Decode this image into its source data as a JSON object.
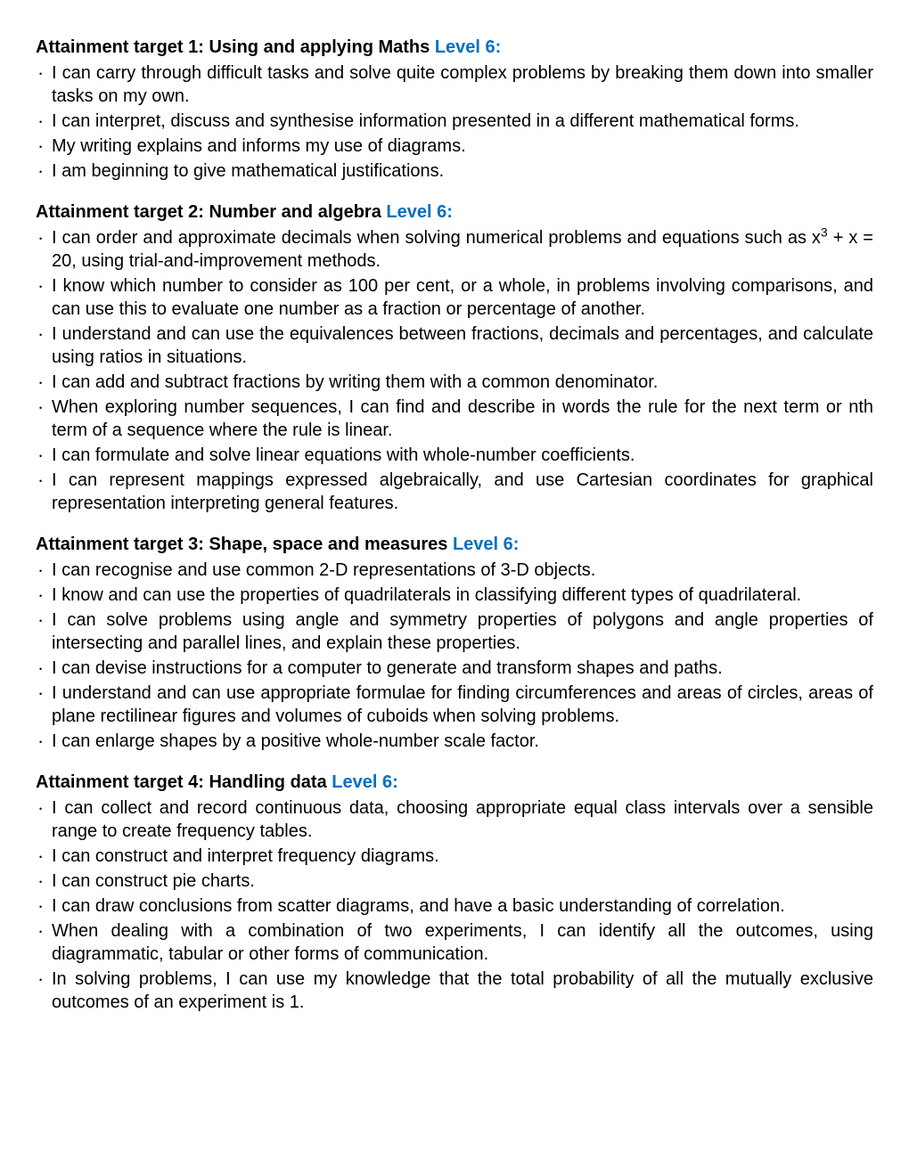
{
  "sections": [
    {
      "title_prefix": "Attainment target 1: Using and applying Maths ",
      "level_label": "Level 6:",
      "items": [
        "I can carry through difficult tasks and solve quite complex problems by breaking them down into smaller tasks on my own.",
        "I can interpret, discuss and synthesise information presented in a different mathematical forms.",
        "My writing explains and informs my use of diagrams.",
        "I am beginning to give mathematical justifications."
      ]
    },
    {
      "title_prefix": "Attainment target 2: Number and algebra ",
      "level_label": "Level 6:",
      "items": [
        "I can order and approximate decimals when solving numerical problems and equations such as x³ + x = 20, using trial-and-improvement methods.",
        "I know which number to consider as 100 per cent, or a whole, in problems involving comparisons, and can use this to evaluate one number as a fraction or percentage of another.",
        "I understand and can use the equivalences between fractions, decimals and percentages, and calculate using ratios in situations.",
        "I can add and subtract fractions by writing them with a common denominator.",
        "When exploring number sequences, I can find and describe in words the rule for the next term or nth term of a sequence where the rule is linear.",
        "I can formulate and solve linear equations with whole-number coefficients.",
        "I can represent mappings expressed algebraically, and use Cartesian coordinates for graphical representation interpreting general features."
      ]
    },
    {
      "title_prefix": "Attainment target 3: Shape, space and measures ",
      "level_label": "Level 6:",
      "items": [
        "I can recognise and use common 2-D representations of 3-D objects.",
        "I know and can use the properties of quadrilaterals in classifying different types of quadrilateral.",
        "I can solve problems using angle and symmetry properties of polygons and angle properties of intersecting and parallel lines, and explain these properties.",
        "I can devise instructions for a computer to generate and transform shapes and paths.",
        "I understand and can use appropriate formulae for finding circumferences and areas of circles, areas of plane rectilinear figures and volumes of cuboids when solving problems.",
        "I can enlarge shapes by a positive whole-number scale factor."
      ]
    },
    {
      "title_prefix": "Attainment target 4: Handling data ",
      "level_label": "Level 6:",
      "items": [
        "I can collect and record continuous data, choosing appropriate equal class intervals over a sensible range to create frequency tables.",
        "I can construct and interpret frequency diagrams.",
        "I can construct pie charts.",
        "I can draw conclusions from scatter diagrams, and have a basic understanding of correlation.",
        "When dealing with a combination of two experiments, I can identify all the outcomes, using diagrammatic, tabular or other forms of communication.",
        "In solving problems, I can use my knowledge that the total probability of all the mutually exclusive outcomes of an experiment is 1."
      ]
    }
  ],
  "colors": {
    "heading_level": "#0070c0",
    "text": "#000000",
    "background": "#ffffff"
  }
}
